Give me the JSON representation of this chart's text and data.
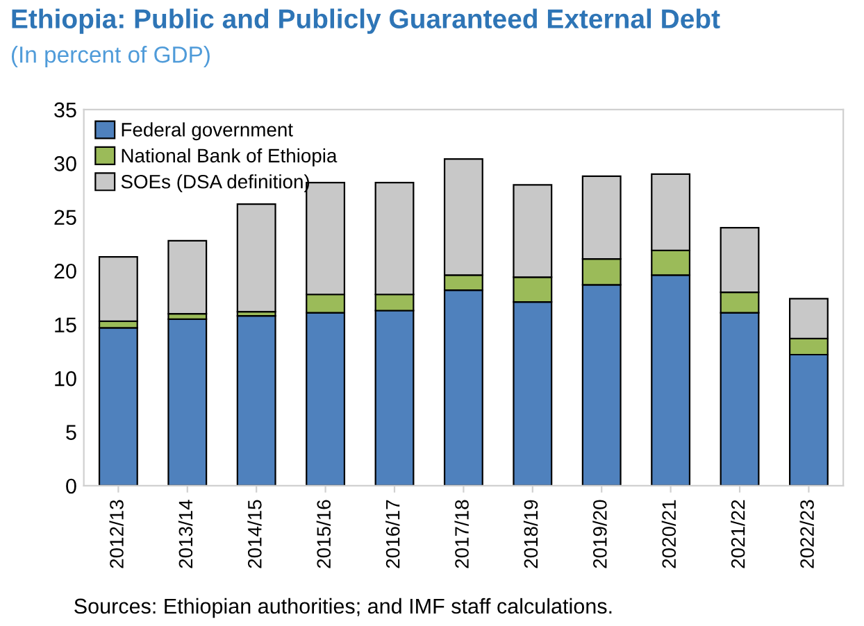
{
  "chart_data": {
    "type": "bar",
    "stacked": true,
    "title": "Ethiopia: Public and Publicly Guaranteed External Debt",
    "subtitle": "(In percent of GDP)",
    "categories": [
      "2012/13",
      "2013/14",
      "2014/15",
      "2015/16",
      "2016/17",
      "2017/18",
      "2018/19",
      "2019/20",
      "2020/21",
      "2021/22",
      "2022/23"
    ],
    "series": [
      {
        "name": "Federal government",
        "color": "#4f81bd",
        "values": [
          14.7,
          15.5,
          15.8,
          16.1,
          16.3,
          18.2,
          17.1,
          18.7,
          19.6,
          16.1,
          12.2
        ]
      },
      {
        "name": "National Bank of Ethiopia",
        "color": "#9bbb59",
        "values": [
          0.6,
          0.5,
          0.4,
          1.7,
          1.5,
          1.4,
          2.3,
          2.4,
          2.3,
          1.9,
          1.5
        ]
      },
      {
        "name": "SOEs (DSA definition)",
        "color": "#c8c8c8",
        "values": [
          6.0,
          6.8,
          10.0,
          10.4,
          10.4,
          10.8,
          8.6,
          7.7,
          7.1,
          6.0,
          3.7
        ]
      }
    ],
    "ylim": [
      0,
      35
    ],
    "yticks": [
      0,
      5,
      10,
      15,
      20,
      25,
      30,
      35
    ],
    "grid": false,
    "legend": "top left",
    "annotations": [
      "Sources: Ethiopian authorities; and IMF staff calculations."
    ]
  }
}
